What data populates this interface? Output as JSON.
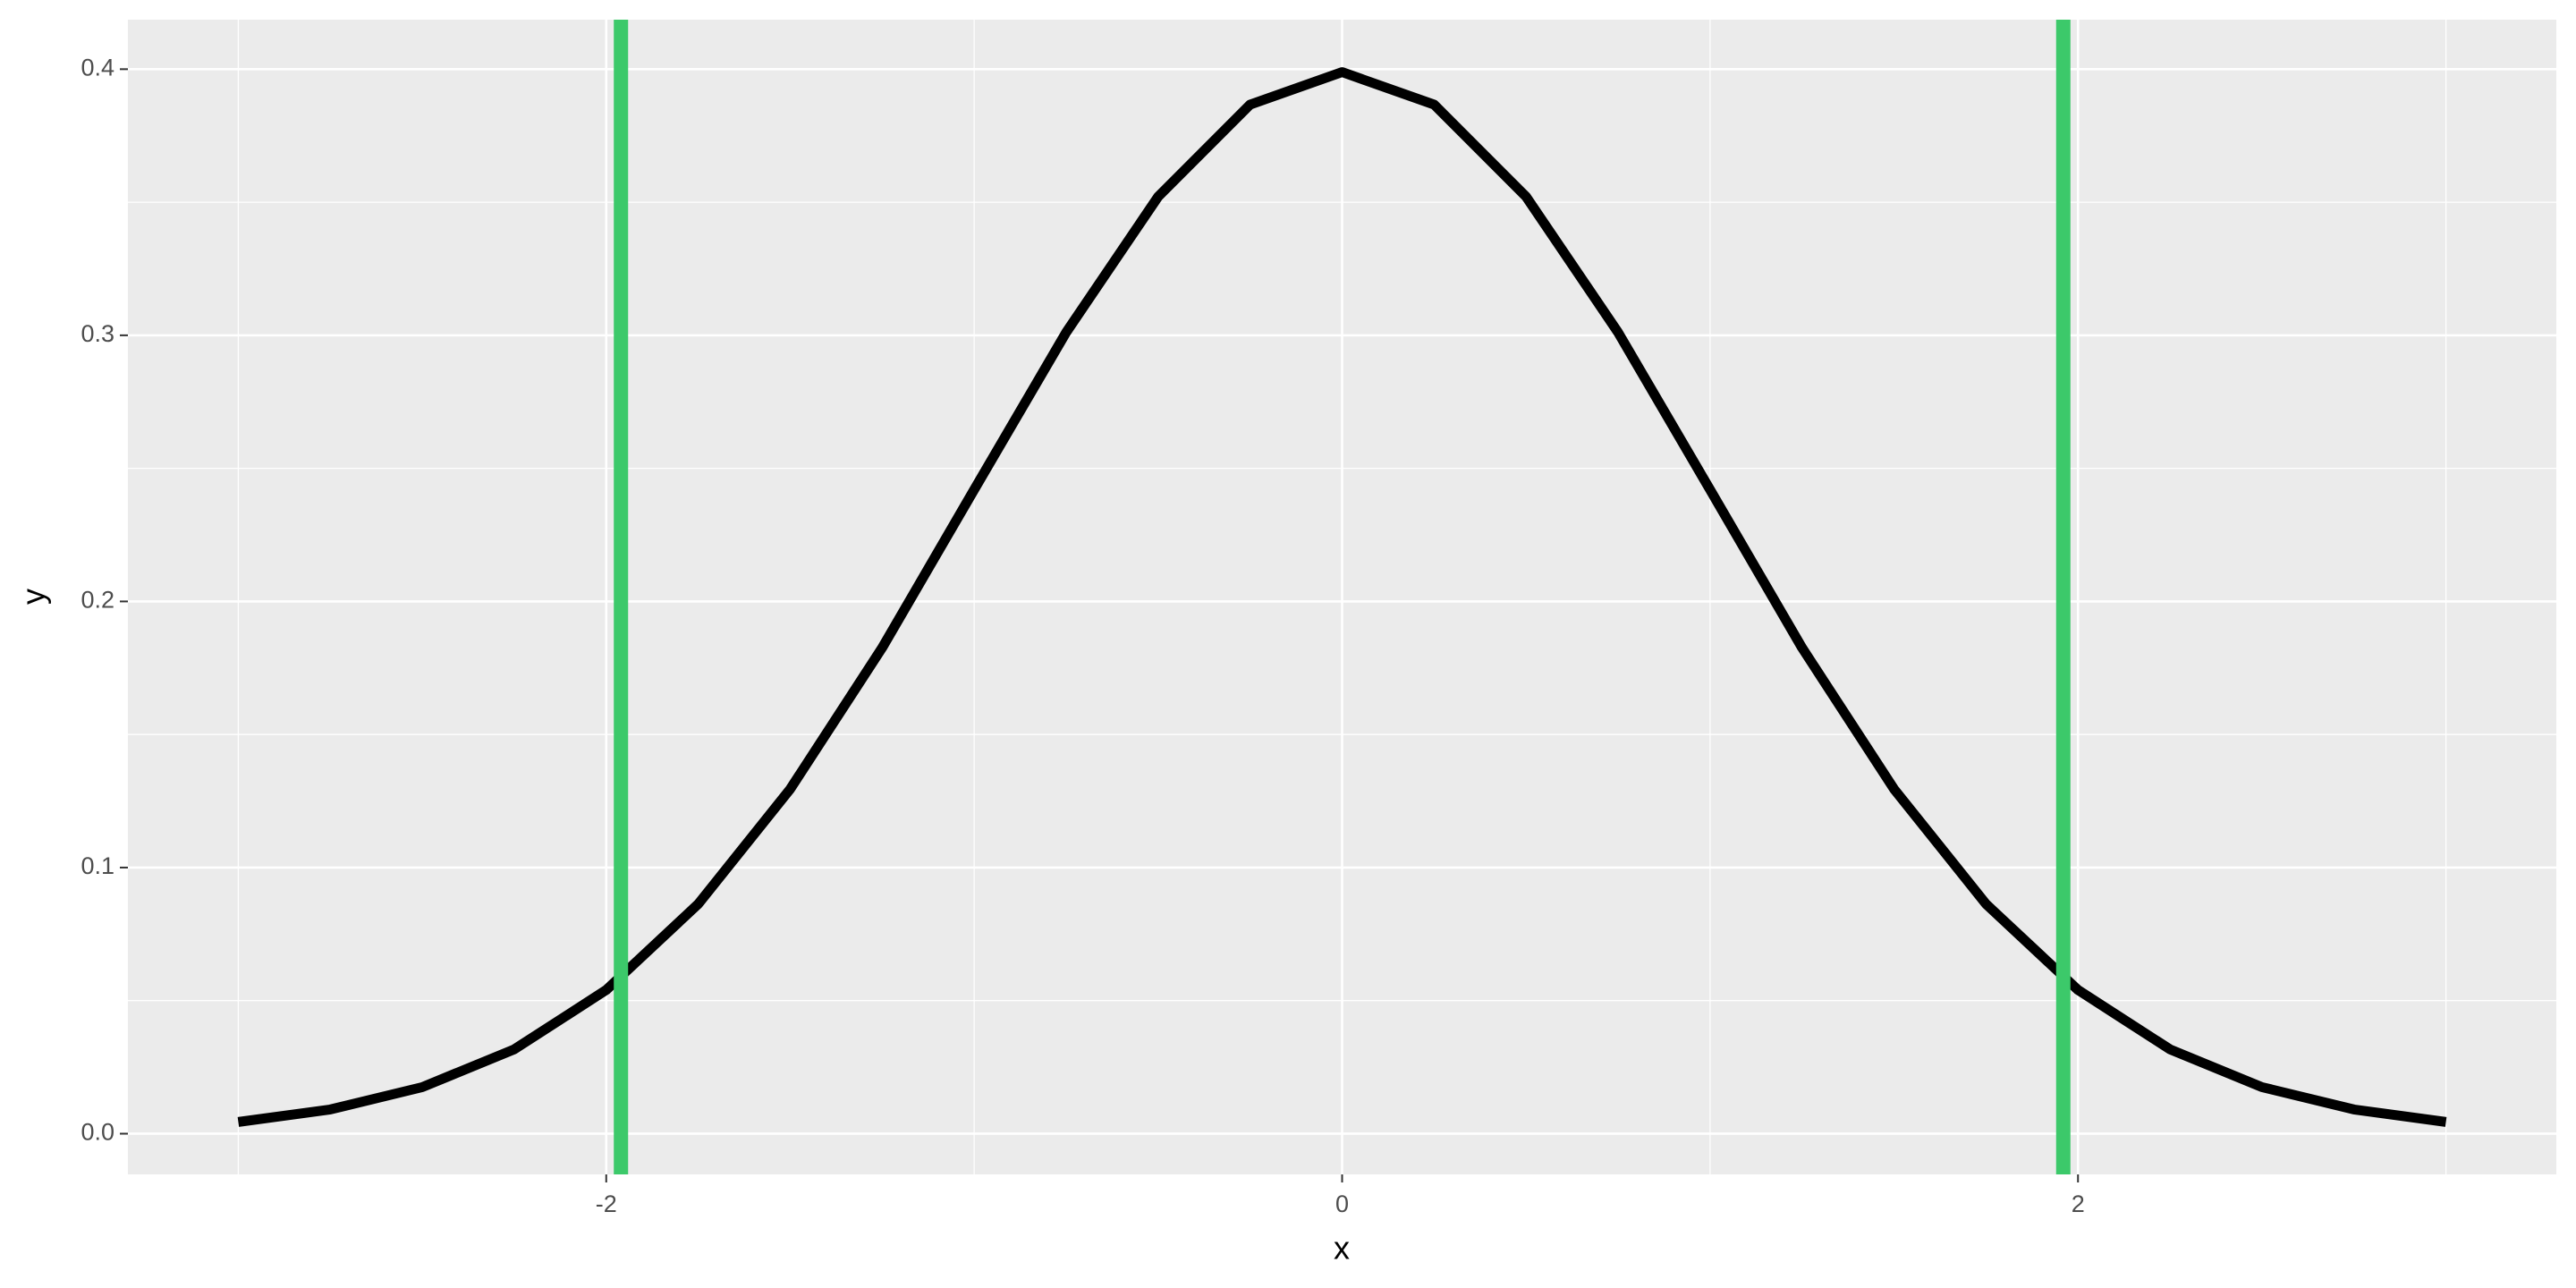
{
  "chart_data": {
    "type": "line",
    "x_label": "x",
    "y_label": "y",
    "x": [
      -3,
      -2.75,
      -2.5,
      -2.25,
      -2,
      -1.75,
      -1.5,
      -1.25,
      -1,
      -0.75,
      -0.5,
      -0.25,
      0,
      0.25,
      0.5,
      0.75,
      1,
      1.25,
      1.5,
      1.75,
      2,
      2.25,
      2.5,
      2.75,
      3
    ],
    "series": [
      {
        "color": "#000000",
        "values": [
          0.0044,
          0.0091,
          0.0175,
          0.0317,
          0.054,
          0.0863,
          0.1295,
          0.1826,
          0.242,
          0.3011,
          0.3521,
          0.3867,
          0.3989,
          0.3867,
          0.3521,
          0.3011,
          0.242,
          0.1826,
          0.1295,
          0.0863,
          0.054,
          0.0317,
          0.0175,
          0.0091,
          0.0044
        ]
      }
    ],
    "vlines": [
      {
        "value": -1.96,
        "color": "#3cc96a"
      },
      {
        "value": 1.96,
        "color": "#3cc96a"
      }
    ],
    "xlim": [
      -3.3,
      3.3
    ],
    "ylim": [
      -0.0153,
      0.4186
    ],
    "xticks": [
      -2,
      0,
      2
    ],
    "yticks": [
      {
        "value": 0,
        "label": "0.0"
      },
      0.1,
      0.2,
      0.3,
      0.4
    ],
    "xminor": [
      -3,
      -1,
      1,
      3
    ],
    "yminor": [
      0.05,
      0.15,
      0.25,
      0.35
    ],
    "grid": true
  }
}
